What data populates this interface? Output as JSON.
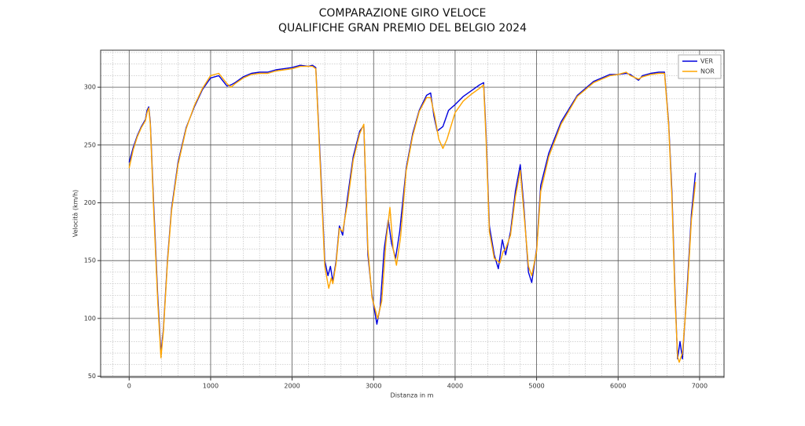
{
  "chart_data": {
    "type": "line",
    "title": "COMPARAZIONE GIRO VELOCE",
    "subtitle": "QUALIFICHE GRAN PREMIO DEL BELGIO 2024",
    "x_label": "Distanza in m",
    "y_label": "Velocità (km/h)",
    "xlim": [
      -350,
      7300
    ],
    "ylim": [
      49,
      332
    ],
    "xticks": [
      0,
      1000,
      2000,
      3000,
      4000,
      5000,
      6000,
      7000
    ],
    "yticks": [
      50,
      100,
      150,
      200,
      250,
      300
    ],
    "grid": true,
    "minor_grid": 5,
    "legend": "upper-right",
    "series": [
      {
        "name": "VER",
        "color": "#0000dd",
        "x": [
          0,
          50,
          100,
          150,
          200,
          220,
          240,
          260,
          300,
          350,
          390,
          420,
          470,
          520,
          600,
          700,
          800,
          900,
          1000,
          1100,
          1200,
          1250,
          1300,
          1400,
          1500,
          1600,
          1700,
          1800,
          1900,
          2000,
          2100,
          2200,
          2250,
          2290,
          2350,
          2400,
          2440,
          2470,
          2500,
          2540,
          2580,
          2620,
          2680,
          2750,
          2830,
          2880,
          2930,
          2980,
          3040,
          3080,
          3130,
          3180,
          3220,
          3270,
          3320,
          3400,
          3480,
          3560,
          3650,
          3700,
          3740,
          3780,
          3850,
          3920,
          4000,
          4100,
          4200,
          4300,
          4350,
          4380,
          4420,
          4480,
          4530,
          4580,
          4620,
          4680,
          4740,
          4800,
          4840,
          4900,
          4940,
          5000,
          5050,
          5150,
          5300,
          5500,
          5700,
          5900,
          6000,
          6100,
          6150,
          6250,
          6300,
          6400,
          6500,
          6570,
          6620,
          6660,
          6700,
          6730,
          6760,
          6790,
          6850,
          6900,
          6950
        ],
        "values": [
          235,
          248,
          258,
          266,
          272,
          280,
          283,
          270,
          200,
          120,
          70,
          90,
          150,
          195,
          235,
          265,
          283,
          298,
          308,
          310,
          301,
          302,
          304,
          309,
          312,
          313,
          313,
          315,
          316,
          317,
          319,
          318,
          319,
          317,
          230,
          150,
          137,
          145,
          132,
          150,
          180,
          172,
          205,
          240,
          262,
          267,
          155,
          120,
          95,
          110,
          160,
          185,
          165,
          152,
          175,
          230,
          260,
          280,
          293,
          295,
          275,
          262,
          266,
          280,
          285,
          292,
          297,
          302,
          304,
          260,
          180,
          155,
          143,
          168,
          155,
          175,
          210,
          233,
          200,
          140,
          131,
          160,
          215,
          243,
          270,
          293,
          305,
          311,
          311,
          312,
          311,
          306,
          310,
          312,
          313,
          313,
          270,
          210,
          120,
          65,
          80,
          65,
          130,
          190,
          226
        ]
      },
      {
        "name": "NOR",
        "color": "#ffa500",
        "x": [
          0,
          50,
          100,
          150,
          200,
          220,
          240,
          260,
          300,
          350,
          390,
          420,
          470,
          520,
          600,
          700,
          800,
          900,
          1000,
          1100,
          1200,
          1250,
          1300,
          1400,
          1500,
          1600,
          1700,
          1800,
          1900,
          2000,
          2100,
          2200,
          2250,
          2290,
          2350,
          2400,
          2450,
          2480,
          2500,
          2540,
          2580,
          2620,
          2680,
          2750,
          2830,
          2880,
          2930,
          2980,
          3050,
          3100,
          3150,
          3200,
          3240,
          3280,
          3330,
          3400,
          3480,
          3560,
          3650,
          3700,
          3750,
          3800,
          3850,
          3900,
          4000,
          4100,
          4200,
          4300,
          4350,
          4380,
          4420,
          4480,
          4550,
          4590,
          4620,
          4680,
          4740,
          4800,
          4840,
          4900,
          4940,
          5000,
          5050,
          5150,
          5300,
          5500,
          5700,
          5900,
          6000,
          6100,
          6150,
          6250,
          6300,
          6400,
          6500,
          6570,
          6620,
          6660,
          6700,
          6730,
          6750,
          6790,
          6850,
          6900,
          6950
        ],
        "values": [
          230,
          246,
          257,
          265,
          271,
          278,
          282,
          268,
          195,
          115,
          66,
          88,
          148,
          193,
          233,
          264,
          284,
          299,
          310,
          312,
          303,
          300,
          303,
          308,
          311,
          312,
          312,
          314,
          315,
          316,
          318,
          318,
          318,
          316,
          225,
          145,
          126,
          135,
          130,
          148,
          178,
          175,
          200,
          237,
          260,
          268,
          160,
          118,
          100,
          115,
          165,
          196,
          160,
          146,
          170,
          228,
          258,
          279,
          291,
          291,
          275,
          255,
          247,
          255,
          278,
          288,
          294,
          299,
          302,
          255,
          175,
          152,
          148,
          158,
          160,
          172,
          205,
          228,
          195,
          145,
          137,
          158,
          210,
          240,
          268,
          292,
          304,
          310,
          311,
          313,
          310,
          307,
          309,
          311,
          312,
          312,
          268,
          205,
          115,
          67,
          62,
          70,
          125,
          185,
          218
        ]
      }
    ]
  }
}
